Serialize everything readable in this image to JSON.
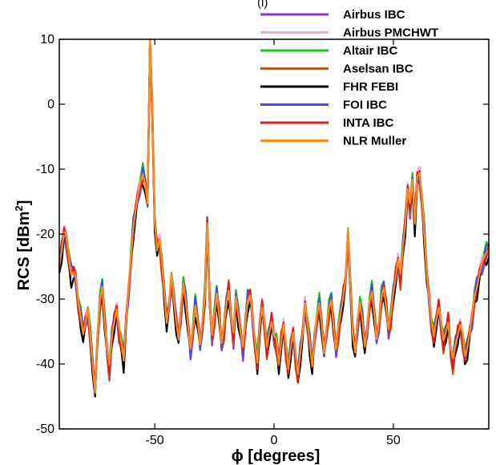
{
  "chart_data": {
    "type": "line",
    "title": "",
    "top_label": "(l)",
    "xlabel": "ϕ [degrees]",
    "ylabel_main": "RCS [dBm",
    "ylabel_sup": "2",
    "ylabel_end": "]",
    "xlim": [
      -90,
      90
    ],
    "ylim": [
      -50,
      10
    ],
    "xticks": [
      -50,
      0,
      50
    ],
    "yticks": [
      -50,
      -40,
      -30,
      -20,
      -10,
      0,
      10
    ],
    "grid": false,
    "legend_position": "top-right",
    "x": [
      -90,
      -89,
      -88,
      -87,
      -86,
      -85,
      -84,
      -83,
      -82,
      -81,
      -80,
      -79,
      -78,
      -77,
      -76,
      -75,
      -74,
      -73,
      -72,
      -71,
      -70,
      -69,
      -68,
      -67,
      -66,
      -65,
      -64,
      -63,
      -62,
      -61,
      -60,
      -59,
      -58,
      -57,
      -56,
      -55,
      -54,
      -53,
      -52,
      -51,
      -50,
      -49,
      -48,
      -47,
      -46,
      -45,
      -44,
      -43,
      -42,
      -41,
      -40,
      -39,
      -38,
      -37,
      -36,
      -35,
      -34,
      -33,
      -32,
      -31,
      -30,
      -29,
      -28,
      -27,
      -26,
      -25,
      -24,
      -23,
      -22,
      -21,
      -20,
      -19,
      -18,
      -17,
      -16,
      -15,
      -14,
      -13,
      -12,
      -11,
      -10,
      -9,
      -8,
      -7,
      -6,
      -5,
      -4,
      -3,
      -2,
      -1,
      0,
      1,
      2,
      3,
      4,
      5,
      6,
      7,
      8,
      9,
      10,
      11,
      12,
      13,
      14,
      15,
      16,
      17,
      18,
      19,
      20,
      21,
      22,
      23,
      24,
      25,
      26,
      27,
      28,
      29,
      30,
      31,
      32,
      33,
      34,
      35,
      36,
      37,
      38,
      39,
      40,
      41,
      42,
      43,
      44,
      45,
      46,
      47,
      48,
      49,
      50,
      51,
      52,
      53,
      54,
      55,
      56,
      57,
      58,
      59,
      60,
      61,
      62,
      63,
      64,
      65,
      66,
      67,
      68,
      69,
      70,
      71,
      72,
      73,
      74,
      75,
      76,
      77,
      78,
      79,
      80,
      81,
      82,
      83,
      84,
      85,
      86,
      87,
      88,
      89,
      90
    ],
    "base": [
      -25,
      -22,
      -19.5,
      -21,
      -24,
      -26,
      -25.5,
      -27,
      -31,
      -33,
      -35,
      -33.5,
      -32,
      -36,
      -40,
      -44,
      -36,
      -31,
      -28,
      -33,
      -38,
      -41,
      -36,
      -33,
      -31.5,
      -35,
      -37,
      -39,
      -33,
      -29,
      -24,
      -19,
      -16,
      -14,
      -12.5,
      -11,
      -12,
      -15,
      10,
      -1,
      -18,
      -22,
      -21,
      -25,
      -29,
      -33,
      -31,
      -27,
      -30,
      -33,
      -36,
      -32,
      -28,
      -30,
      -34,
      -38,
      -35,
      -31,
      -33,
      -37,
      -34,
      -30,
      -18,
      -30,
      -36,
      -33,
      -29,
      -32,
      -37,
      -35,
      -31,
      -28,
      -33,
      -36,
      -30,
      -32,
      -35,
      -38,
      -34,
      -30,
      -29,
      -33,
      -37,
      -40,
      -34,
      -31,
      -34,
      -38,
      -35,
      -33,
      -36,
      -37,
      -40,
      -36,
      -34,
      -38,
      -41,
      -37,
      -35,
      -39,
      -42,
      -38,
      -35,
      -31,
      -34,
      -37,
      -40,
      -36,
      -33,
      -31,
      -34,
      -38,
      -35,
      -32,
      -30,
      -34,
      -38,
      -35,
      -32,
      -29,
      -27,
      -20,
      -28,
      -35,
      -38,
      -34,
      -31,
      -33,
      -37,
      -35,
      -31,
      -29,
      -32,
      -36,
      -34,
      -30,
      -28,
      -31,
      -35,
      -33,
      -29,
      -26,
      -24,
      -27,
      -22,
      -18,
      -13,
      -16,
      -12,
      -18,
      -11,
      -11,
      -15,
      -20,
      -26,
      -30,
      -34,
      -36,
      -33,
      -31,
      -34,
      -37,
      -35,
      -33,
      -38,
      -40,
      -37,
      -35,
      -34,
      -36,
      -39,
      -37,
      -35,
      -33,
      -30,
      -28,
      -26,
      -25,
      -24,
      -23,
      -22,
      -21,
      -20
    ],
    "series": [
      {
        "name": "Airbus IBC",
        "color": "#9b30d0",
        "off": -0.5,
        "variance": 1.2
      },
      {
        "name": "Airbus PMCHWT",
        "color": "#ff9ee6",
        "off": 0.4,
        "variance": 1.0
      },
      {
        "name": "Altair IBC",
        "color": "#19c619",
        "off": 0.6,
        "variance": 1.4
      },
      {
        "name": "Aselsan IBC",
        "color": "#b85c1a",
        "off": -0.3,
        "variance": 1.3
      },
      {
        "name": "FHR FEBI",
        "color": "#000000",
        "off": -0.8,
        "variance": 1.6
      },
      {
        "name": "FOI IBC",
        "color": "#3b4cf0",
        "off": 0.2,
        "variance": 1.1
      },
      {
        "name": "INTA IBC",
        "color": "#e01a1a",
        "off": 0.0,
        "variance": 0.9
      },
      {
        "name": "NLR Muller",
        "color": "#ff8c1a",
        "off": 0.1,
        "variance": 0.8
      }
    ]
  }
}
